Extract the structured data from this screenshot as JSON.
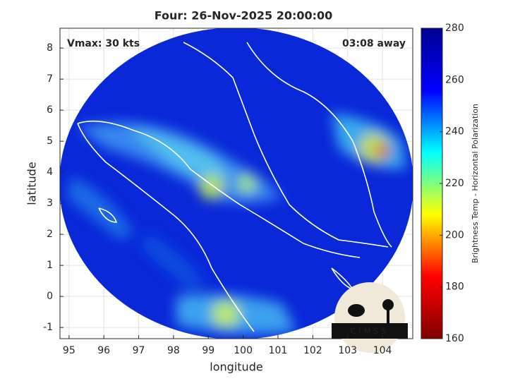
{
  "chart_data": {
    "type": "map",
    "title": "Four: 26-Nov-2025 20:00:00",
    "annotations": [
      "Vmax: 30 kts",
      "03:08 away"
    ],
    "x_label": "longitude",
    "y_label": "latitude",
    "xlim": [
      94.74,
      104.87
    ],
    "ylim": [
      -1.36,
      8.64
    ],
    "xticks": [
      95,
      96,
      97,
      98,
      99,
      100,
      101,
      102,
      103,
      104
    ],
    "yticks": [
      -1,
      0,
      1,
      2,
      3,
      4,
      5,
      6,
      7,
      8
    ],
    "grid": true,
    "colorbar": {
      "label": "Brightness Temp - Horizontal Polarization",
      "lim": [
        160,
        280
      ],
      "ticks": [
        160,
        180,
        200,
        220,
        240,
        260,
        280
      ],
      "colors": [
        "#800000",
        "#ff0000",
        "#ffff00",
        "#00ffff",
        "#0000ff",
        "#00008f"
      ]
    },
    "logo": "CIMSS"
  }
}
